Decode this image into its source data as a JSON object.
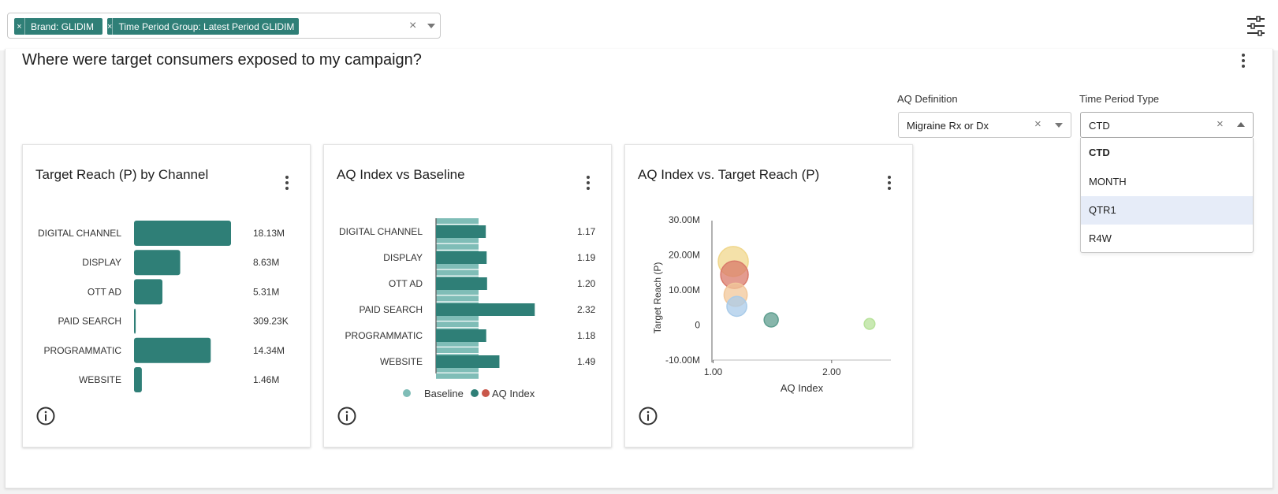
{
  "filters": {
    "chips": [
      {
        "remove": "×",
        "label": "Brand: GLIDIM"
      },
      {
        "remove": "×",
        "label": "Time Period Group: Latest Period GLIDIM"
      }
    ],
    "clear": "×"
  },
  "page": {
    "title": "Where were target consumers exposed to my campaign?"
  },
  "controls": {
    "aq_definition": {
      "label": "AQ Definition",
      "value": "Migraine Rx or Dx",
      "clear": "×"
    },
    "time_period_type": {
      "label": "Time Period Type",
      "value": "CTD",
      "clear": "×",
      "options": [
        "CTD",
        "MONTH",
        "QTR1",
        "R4W"
      ],
      "selected": "CTD",
      "highlighted": "QTR1"
    }
  },
  "cards": [
    {
      "title": "Target Reach (P) by Channel"
    },
    {
      "title": "AQ Index vs Baseline"
    },
    {
      "title": "AQ Index vs. Target Reach (P)"
    }
  ],
  "colors": {
    "accent": "#2f7f77",
    "baseline": "#7fbdb7",
    "aq_index_alt": "#c9574a",
    "highlight": "#e6ecf8"
  },
  "chart_data": [
    {
      "type": "bar",
      "orientation": "horizontal",
      "categories": [
        "DIGITAL CHANNEL",
        "DISPLAY",
        "OTT AD",
        "PAID SEARCH",
        "PROGRAMMATIC",
        "WEBSITE"
      ],
      "values": [
        18130000,
        8630000,
        5310000,
        309230,
        14340000,
        1460000
      ],
      "value_labels": [
        "18.13M",
        "8.63M",
        "5.31M",
        "309.23K",
        "14.34M",
        "1.46M"
      ]
    },
    {
      "type": "bar",
      "orientation": "horizontal",
      "categories": [
        "DIGITAL CHANNEL",
        "DISPLAY",
        "OTT AD",
        "PAID SEARCH",
        "PROGRAMMATIC",
        "WEBSITE"
      ],
      "series": [
        {
          "name": "Baseline",
          "values": [
            1,
            1,
            1,
            1,
            1,
            1
          ]
        },
        {
          "name": "AQ Index",
          "values": [
            1.17,
            1.19,
            1.2,
            2.32,
            1.18,
            1.49
          ]
        }
      ],
      "value_labels": [
        "1.17",
        "1.19",
        "1.20",
        "2.32",
        "1.18",
        "1.49"
      ],
      "legend": [
        "Baseline",
        "AQ Index"
      ],
      "legend_position": "bottom"
    },
    {
      "type": "scatter",
      "subtype": "bubble",
      "xlabel": "AQ Index",
      "ylabel": "Target Reach (P)",
      "x_ticks": [
        "1.00",
        "2.00"
      ],
      "y_ticks": [
        "30.00M",
        "20.00M",
        "10.00M",
        "0",
        "-10.00M"
      ],
      "xlim": [
        0.99,
        2.5
      ],
      "ylim": [
        -10000000,
        30000000
      ],
      "points": [
        {
          "name": "DIGITAL CHANNEL",
          "x": 1.17,
          "y": 18130000,
          "color": "#f0d78c"
        },
        {
          "name": "PROGRAMMATIC",
          "x": 1.18,
          "y": 14340000,
          "color": "#d9796a"
        },
        {
          "name": "DISPLAY",
          "x": 1.19,
          "y": 8630000,
          "color": "#f1c79a"
        },
        {
          "name": "OTT AD",
          "x": 1.2,
          "y": 5310000,
          "color": "#a9cbe9"
        },
        {
          "name": "WEBSITE",
          "x": 1.49,
          "y": 1460000,
          "color": "#5f9e8f"
        },
        {
          "name": "PAID SEARCH",
          "x": 2.32,
          "y": 309230,
          "color": "#b7e29a"
        }
      ]
    }
  ]
}
